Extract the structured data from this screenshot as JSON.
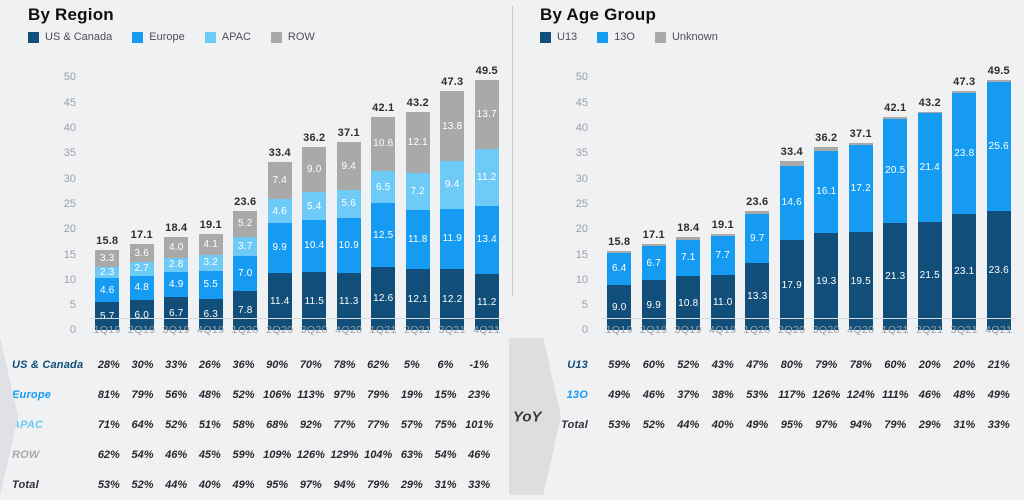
{
  "background": "#f0f1f3",
  "colors": {
    "navy": "#114e79",
    "blue": "#169bf2",
    "lightblue": "#6ecbf8",
    "gray": "#a9a9a9",
    "dark": "#303338"
  },
  "yoy_label": "YoY",
  "chart_data": [
    {
      "type": "bar",
      "stacked": true,
      "title": "By Region",
      "grid": false,
      "legend_position": "top",
      "ylim": [
        0,
        50
      ],
      "ytick_step": 5,
      "categories": [
        "1Q19",
        "2Q19",
        "3Q19",
        "4Q19",
        "1Q20",
        "2Q20",
        "3Q20",
        "4Q20",
        "1Q21",
        "2Q21",
        "3Q21",
        "4Q21"
      ],
      "series": [
        {
          "name": "US & Canada",
          "color_key": "navy",
          "values": [
            5.7,
            6.0,
            6.7,
            6.3,
            7.8,
            11.4,
            11.5,
            11.3,
            12.6,
            12.1,
            12.2,
            11.2
          ]
        },
        {
          "name": "Europe",
          "color_key": "blue",
          "values": [
            4.6,
            4.8,
            4.9,
            5.5,
            7.0,
            9.9,
            10.4,
            10.9,
            12.5,
            11.8,
            11.9,
            13.4
          ]
        },
        {
          "name": "APAC",
          "color_key": "lightblue",
          "values": [
            2.3,
            2.7,
            2.8,
            3.2,
            3.7,
            4.6,
            5.4,
            5.6,
            6.5,
            7.2,
            9.4,
            11.2
          ]
        },
        {
          "name": "ROW",
          "color_key": "gray",
          "values": [
            3.3,
            3.6,
            4.0,
            4.1,
            5.2,
            7.4,
            9.0,
            9.4,
            10.6,
            12.1,
            13.8,
            13.7
          ]
        }
      ],
      "totals": [
        15.8,
        17.1,
        18.4,
        19.1,
        23.6,
        33.4,
        36.2,
        37.1,
        42.1,
        43.2,
        47.3,
        49.5
      ],
      "table": {
        "rows": [
          {
            "label": "US & Canada",
            "color_key": "navy",
            "values": [
              "28%",
              "30%",
              "33%",
              "26%",
              "36%",
              "90%",
              "70%",
              "78%",
              "62%",
              "5%",
              "6%",
              "-1%"
            ]
          },
          {
            "label": "Europe",
            "color_key": "blue",
            "values": [
              "81%",
              "79%",
              "56%",
              "48%",
              "52%",
              "106%",
              "113%",
              "97%",
              "79%",
              "19%",
              "15%",
              "23%"
            ]
          },
          {
            "label": "APAC",
            "color_key": "lightblue",
            "values": [
              "71%",
              "64%",
              "52%",
              "51%",
              "58%",
              "68%",
              "92%",
              "77%",
              "77%",
              "57%",
              "75%",
              "101%"
            ]
          },
          {
            "label": "ROW",
            "color_key": "gray",
            "values": [
              "62%",
              "54%",
              "46%",
              "45%",
              "59%",
              "109%",
              "126%",
              "129%",
              "104%",
              "63%",
              "54%",
              "46%"
            ]
          },
          {
            "label": "Total",
            "color_key": "dark",
            "values": [
              "53%",
              "52%",
              "44%",
              "40%",
              "49%",
              "95%",
              "97%",
              "94%",
              "79%",
              "29%",
              "31%",
              "33%"
            ]
          }
        ]
      }
    },
    {
      "type": "bar",
      "stacked": true,
      "title": "By Age Group",
      "grid": false,
      "legend_position": "top",
      "ylim": [
        0,
        50
      ],
      "ytick_step": 5,
      "categories": [
        "1Q19",
        "2Q19",
        "3Q19",
        "4Q19",
        "1Q20",
        "2Q20",
        "3Q20",
        "4Q20",
        "1Q21",
        "2Q21",
        "3Q21",
        "4Q21"
      ],
      "series": [
        {
          "name": "U13",
          "color_key": "navy",
          "values": [
            9.0,
            9.9,
            10.8,
            11.0,
            13.3,
            17.9,
            19.3,
            19.5,
            21.3,
            21.5,
            23.1,
            23.6
          ]
        },
        {
          "name": "13O",
          "color_key": "blue",
          "values": [
            6.4,
            6.7,
            7.1,
            7.7,
            9.7,
            14.6,
            16.1,
            17.2,
            20.5,
            21.4,
            23.8,
            25.6
          ]
        },
        {
          "name": "Unknown",
          "color_key": "gray",
          "values": [
            0.4,
            0.5,
            0.5,
            0.4,
            0.6,
            0.9,
            0.8,
            0.4,
            0.3,
            0.3,
            0.4,
            0.3
          ],
          "hide_labels": true
        }
      ],
      "totals": [
        15.8,
        17.1,
        18.4,
        19.1,
        23.6,
        33.4,
        36.2,
        37.1,
        42.1,
        43.2,
        47.3,
        49.5
      ],
      "table": {
        "rows": [
          {
            "label": "U13",
            "color_key": "navy",
            "values": [
              "59%",
              "60%",
              "52%",
              "43%",
              "47%",
              "80%",
              "79%",
              "78%",
              "60%",
              "20%",
              "20%",
              "21%"
            ]
          },
          {
            "label": "13O",
            "color_key": "blue",
            "values": [
              "49%",
              "46%",
              "37%",
              "38%",
              "53%",
              "117%",
              "126%",
              "124%",
              "111%",
              "46%",
              "48%",
              "49%"
            ]
          },
          {
            "label": "Total",
            "color_key": "dark",
            "values": [
              "53%",
              "52%",
              "44%",
              "40%",
              "49%",
              "95%",
              "97%",
              "94%",
              "79%",
              "29%",
              "31%",
              "33%"
            ]
          }
        ]
      }
    }
  ]
}
